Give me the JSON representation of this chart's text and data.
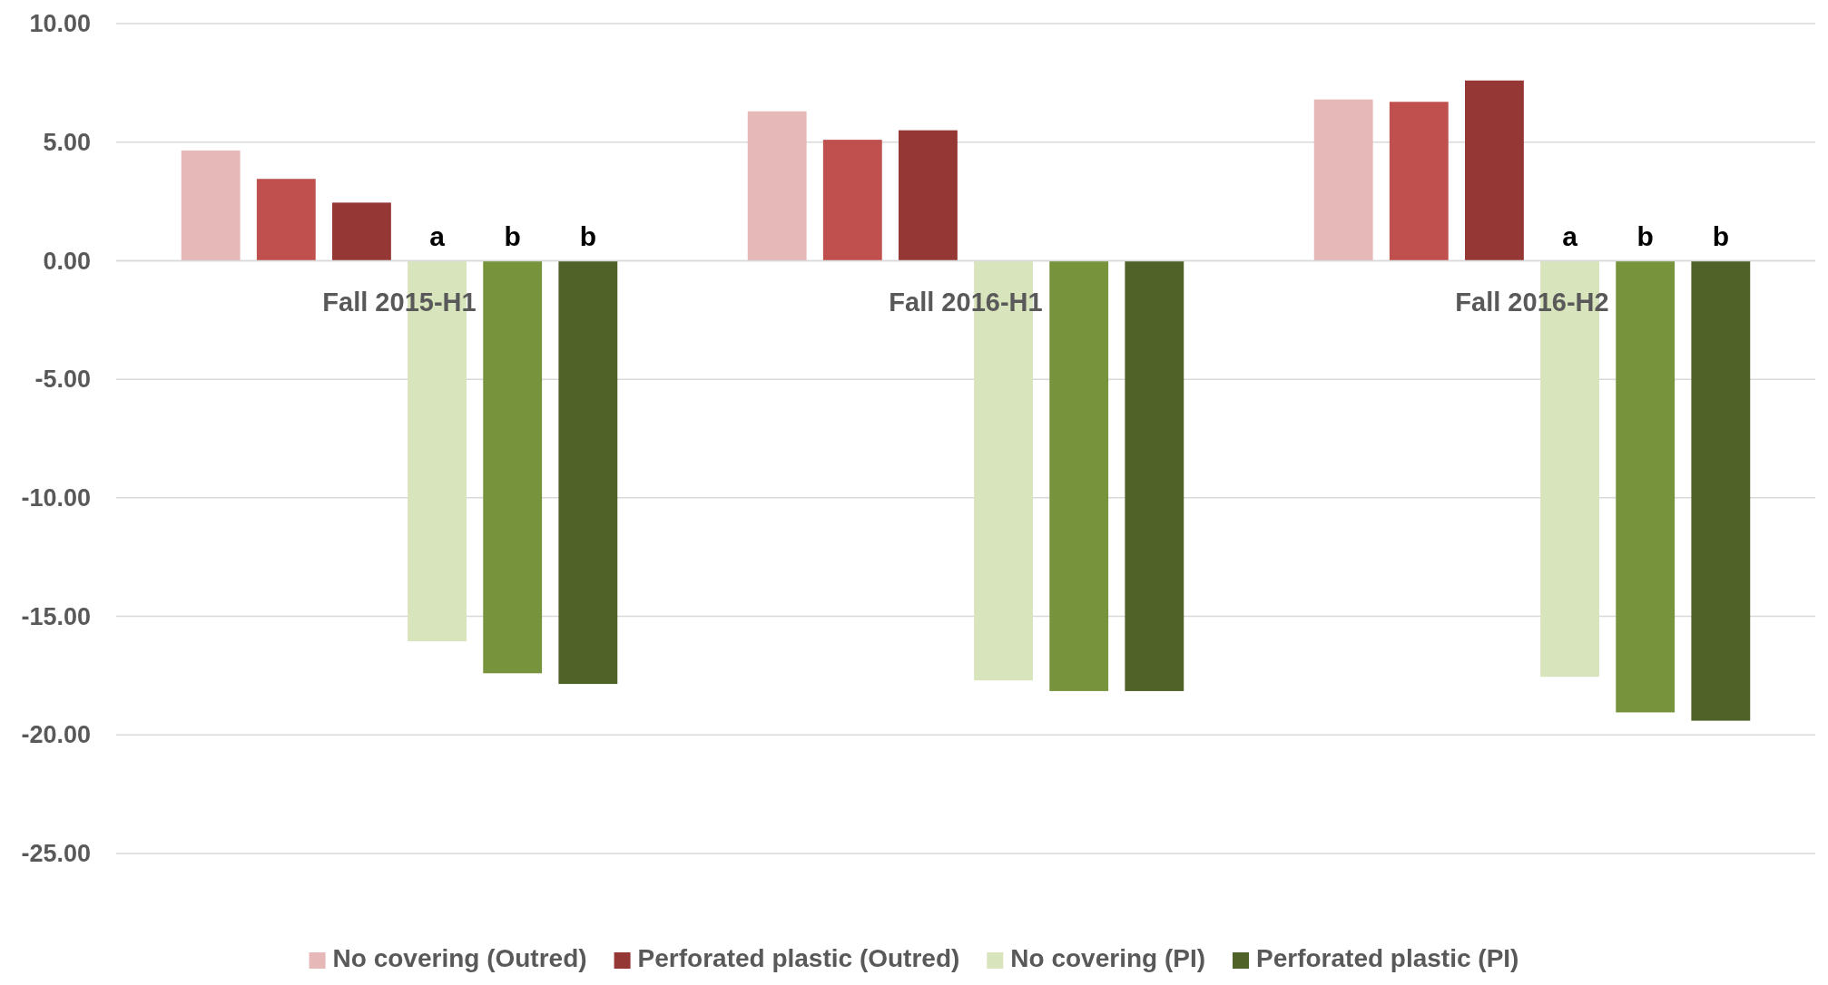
{
  "chart_data": {
    "type": "bar",
    "categories": [
      "Fall 2015-H1",
      "Fall 2016-H1",
      "Fall 2016-H2"
    ],
    "series": [
      {
        "name": "No covering (Outred)",
        "color": "#e6b8b7",
        "values": [
          4.65,
          6.3,
          6.8
        ]
      },
      {
        "color": "#c0504d",
        "values": [
          3.45,
          5.1,
          6.7
        ]
      },
      {
        "name": "Perforated plastic (Outred)",
        "color": "#953735",
        "values": [
          2.45,
          5.5,
          7.6
        ]
      },
      {
        "name": "No covering (PI)",
        "color": "#d8e4bc",
        "values": [
          -16.05,
          -17.7,
          -17.55
        ],
        "value_labels": [
          "a",
          null,
          "a"
        ]
      },
      {
        "color": "#77933c",
        "values": [
          -17.4,
          -18.15,
          -19.05
        ],
        "value_labels": [
          "b",
          null,
          "b"
        ]
      },
      {
        "name": "Perforated plastic (PI)",
        "color": "#4f6228",
        "values": [
          -17.85,
          -18.15,
          -19.4
        ],
        "value_labels": [
          "b",
          null,
          "b"
        ]
      }
    ],
    "ylim": [
      -25,
      10
    ],
    "yticks": [
      {
        "value": 10,
        "label": "10.00"
      },
      {
        "value": 5,
        "label": "5.00"
      },
      {
        "value": 0,
        "label": "0.00"
      },
      {
        "value": -5,
        "label": "-5.00"
      },
      {
        "value": -10,
        "label": "-10.00"
      },
      {
        "value": -15,
        "label": "-15.00"
      },
      {
        "value": -20,
        "label": "-20.00"
      },
      {
        "value": -25,
        "label": "-25.00"
      }
    ],
    "grid": "y",
    "legend": "bottom"
  }
}
